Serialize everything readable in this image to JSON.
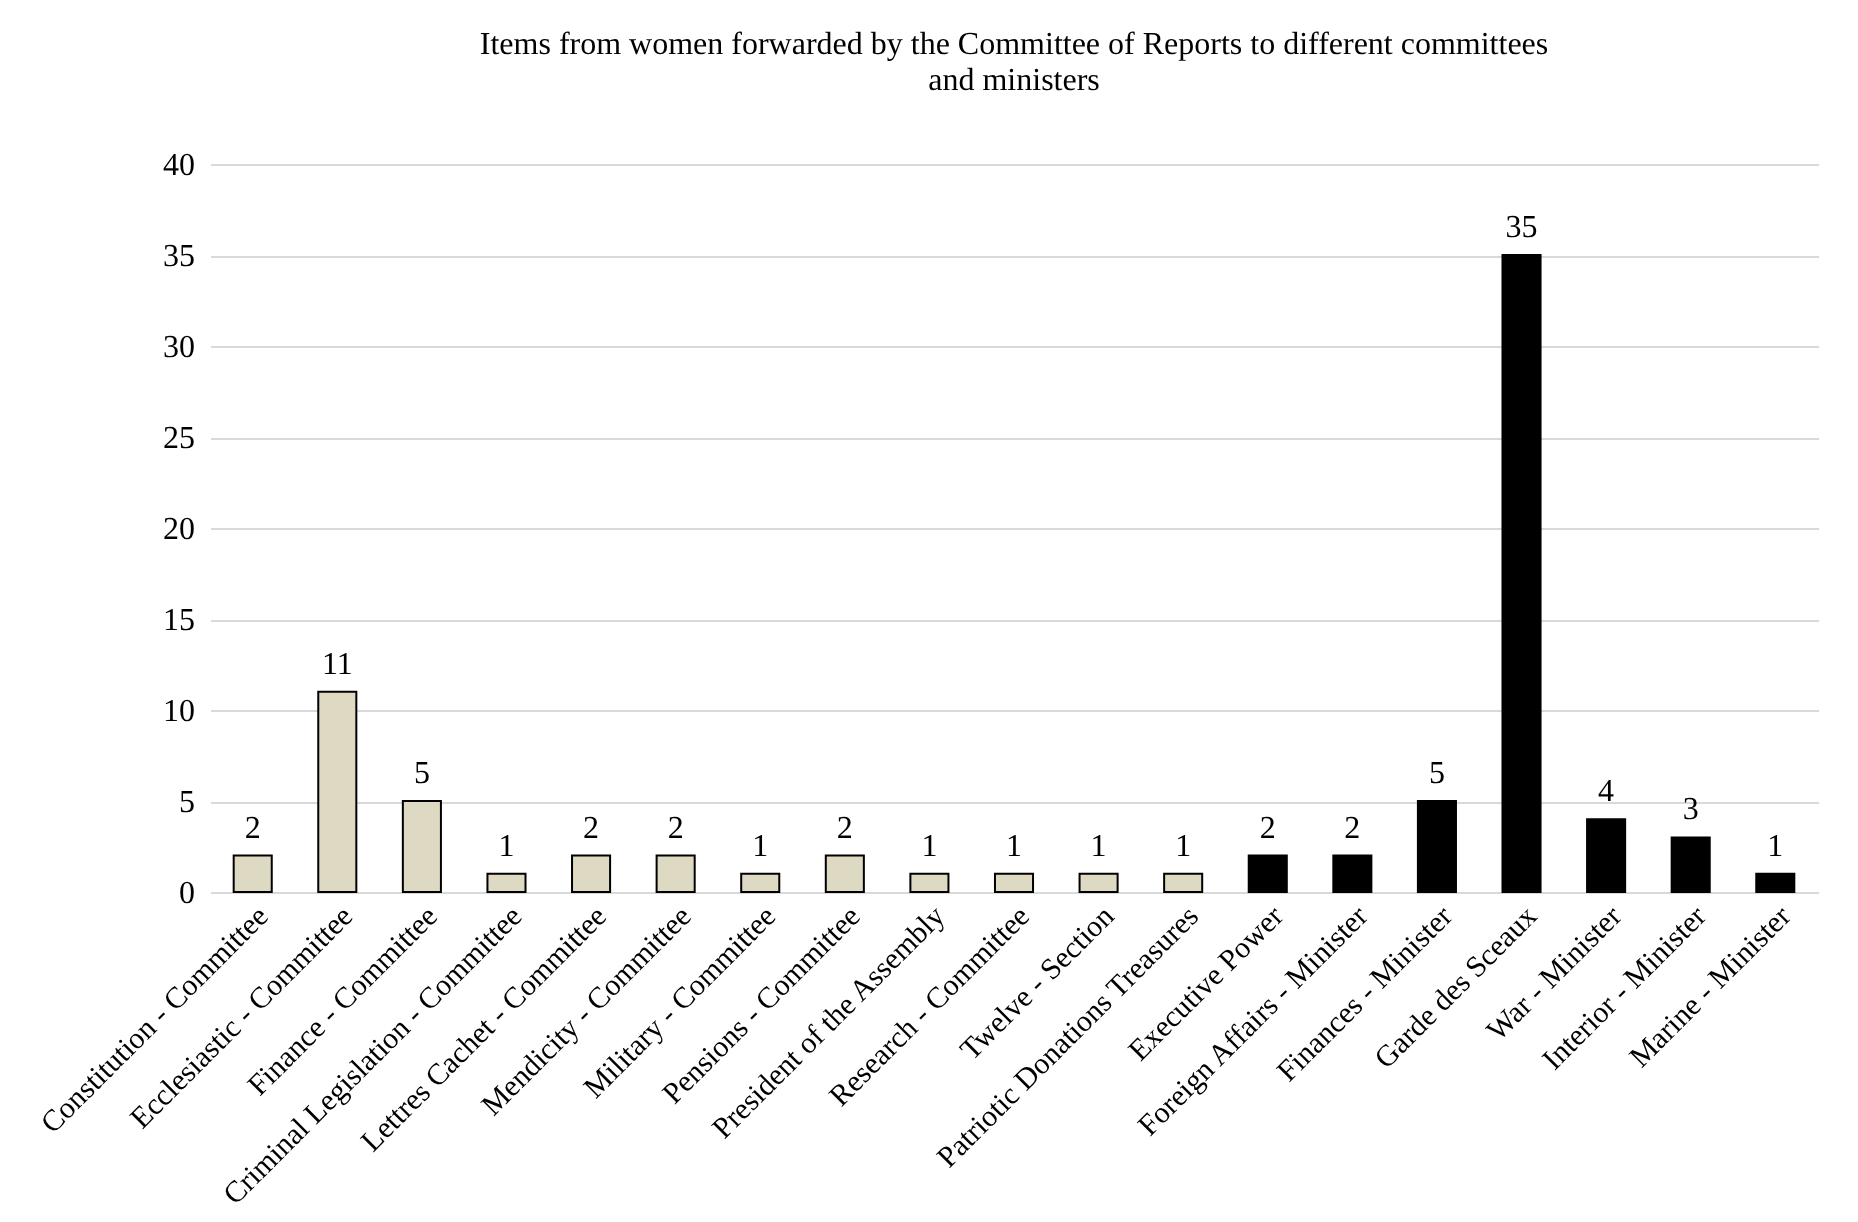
{
  "chart_data": {
    "type": "bar",
    "title": "Items from women forwarded by the Committee of Reports to different committees and ministers",
    "categories": [
      "Constitution - Committee",
      "Ecclesiastic - Committee",
      "Finance - Committee",
      "Criminal Legislation - Committee",
      "Lettres Cachet - Committee",
      "Mendicity - Committee",
      "Military - Committee",
      "Pensions - Committee",
      "President of the Assembly",
      "Research - Committee",
      "Twelve - Section",
      "Patriotic Donations Treasures",
      "Executive Power",
      "Foreign Affairs - Minister",
      "Finances - Minister",
      "Garde des Sceaux",
      "War - Minister",
      "Interior - Minister",
      "Marine - Minister"
    ],
    "values": [
      2,
      11,
      5,
      1,
      2,
      2,
      1,
      2,
      1,
      1,
      1,
      1,
      2,
      2,
      5,
      35,
      4,
      3,
      1
    ],
    "colors": [
      "#ddd9c3",
      "#ddd9c3",
      "#ddd9c3",
      "#ddd9c3",
      "#ddd9c3",
      "#ddd9c3",
      "#ddd9c3",
      "#ddd9c3",
      "#ddd9c3",
      "#ddd9c3",
      "#ddd9c3",
      "#ddd9c3",
      "#000000",
      "#000000",
      "#000000",
      "#000000",
      "#000000",
      "#000000",
      "#000000"
    ],
    "ylim": [
      0,
      40
    ],
    "yticks": [
      0,
      5,
      10,
      15,
      20,
      25,
      30,
      35,
      40
    ],
    "grid": "y",
    "data_labels": true
  }
}
